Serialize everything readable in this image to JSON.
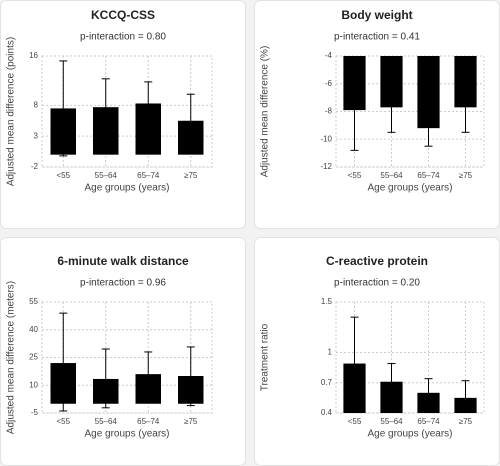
{
  "chart_data": [
    {
      "type": "bar",
      "title": "KCCQ-CSS",
      "subtitle": "p-interaction = 0.80",
      "ylabel": "Adjusted mean difference (points)",
      "xlabel": "Age groups (years)",
      "categories": [
        "<55",
        "55–64",
        "65–74",
        "≥75"
      ],
      "values": [
        7.5,
        7.7,
        8.3,
        5.5
      ],
      "ci_low": [
        -0.2,
        3.1,
        4.8,
        1.2
      ],
      "ci_high": [
        15.2,
        12.3,
        11.8,
        9.8
      ],
      "color": "#000000",
      "ylim": [
        -2,
        16
      ],
      "yticks": [
        -2,
        3,
        8,
        16
      ],
      "grid": true
    },
    {
      "type": "bar",
      "title": "Body weight",
      "subtitle": "p-interaction = 0.41",
      "ylabel": "Adjusted mean difference (%)",
      "xlabel": "Age groups (years)",
      "categories": [
        "<55",
        "55–64",
        "65–74",
        "≥75"
      ],
      "values": [
        -7.9,
        -7.7,
        -9.2,
        -7.7
      ],
      "ci_low": [
        -10.8,
        -9.5,
        -10.5,
        -9.5
      ],
      "ci_high": [
        -5.0,
        -5.9,
        -7.9,
        -5.9
      ],
      "color": "#000000",
      "ylim": [
        -12,
        -4
      ],
      "yticks": [
        -12,
        -10,
        -8,
        -6,
        -4
      ],
      "grid": true
    },
    {
      "type": "bar",
      "title": "6-minute walk distance",
      "subtitle": "p-interaction = 0.96",
      "ylabel": "Adjusted mean difference (meters)",
      "xlabel": "Age groups (years)",
      "categories": [
        "<55",
        "55–64",
        "65–74",
        "≥75"
      ],
      "values": [
        22,
        13.4,
        16,
        15
      ],
      "ci_low": [
        -3.9,
        -2.2,
        4,
        -1
      ],
      "ci_high": [
        49,
        29.6,
        28,
        30.7
      ],
      "color": "#000000",
      "ylim": [
        -5,
        55
      ],
      "yticks": [
        -5,
        10,
        25,
        40,
        55
      ],
      "grid": true
    },
    {
      "type": "bar",
      "title": "C-reactive protein",
      "subtitle": "p-interaction = 0.20",
      "ylabel": "Treatment ratio",
      "xlabel": "Age groups (years)",
      "categories": [
        "<55",
        "55–64",
        "65–74",
        "≥75"
      ],
      "values": [
        0.89,
        0.71,
        0.6,
        0.55
      ],
      "ci_low": [
        0.55,
        0.57,
        0.49,
        0.44
      ],
      "ci_high": [
        1.35,
        0.89,
        0.74,
        0.72
      ],
      "color": "#000000",
      "ylim": [
        0.4,
        1.5
      ],
      "yticks": [
        0.4,
        0.7,
        1,
        1.5
      ],
      "grid": true
    }
  ]
}
